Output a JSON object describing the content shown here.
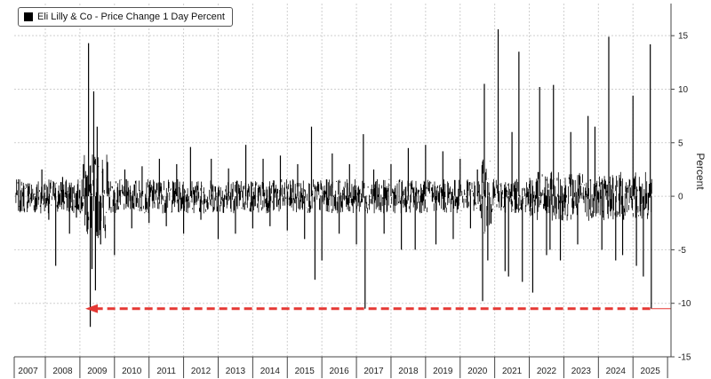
{
  "chart_data": {
    "type": "line",
    "title": "",
    "legend": {
      "entries": [
        "Eli Lilly & Co - Price Change 1 Day Percent"
      ],
      "placement": "top-left"
    },
    "ylabel": "Percent",
    "xlabel": "",
    "ylim": [
      -15,
      18
    ],
    "yticks": [
      15,
      10,
      5,
      0,
      -5,
      -10,
      -15
    ],
    "xlim": [
      2006.6,
      2025.6
    ],
    "xticks": [
      "2007",
      "2008",
      "2009",
      "2010",
      "2011",
      "2012",
      "2013",
      "2014",
      "2015",
      "2016",
      "2017",
      "2018",
      "2019",
      "2020",
      "2021",
      "2022",
      "2023",
      "2024",
      "2025"
    ],
    "reference_line": {
      "value": -10.5,
      "label": "-10.5",
      "color": "#e53935",
      "style": "dashed-arrow"
    },
    "series": [
      {
        "name": "Eli Lilly & Co - Price Change 1 Day Percent",
        "color": "#000000",
        "points": [
          [
            2007.0,
            1.2
          ],
          [
            2007.2,
            -1.5
          ],
          [
            2007.4,
            2.5
          ],
          [
            2007.6,
            -2.2
          ],
          [
            2007.8,
            -6.5
          ],
          [
            2008.0,
            1.8
          ],
          [
            2008.2,
            -3.5
          ],
          [
            2008.4,
            -2.0
          ],
          [
            2008.6,
            3.0
          ],
          [
            2008.75,
            14.3
          ],
          [
            2008.8,
            -12.2
          ],
          [
            2008.85,
            -6.8
          ],
          [
            2008.9,
            9.8
          ],
          [
            2008.95,
            -8.8
          ],
          [
            2009.0,
            6.5
          ],
          [
            2009.1,
            -4.5
          ],
          [
            2009.3,
            3.2
          ],
          [
            2009.5,
            -5.5
          ],
          [
            2009.8,
            2.5
          ],
          [
            2010.0,
            -3.0
          ],
          [
            2010.3,
            2.8
          ],
          [
            2010.5,
            -2.5
          ],
          [
            2010.8,
            3.5
          ],
          [
            2011.0,
            -2.8
          ],
          [
            2011.3,
            3.0
          ],
          [
            2011.5,
            -3.5
          ],
          [
            2011.7,
            4.6
          ],
          [
            2012.0,
            -2.2
          ],
          [
            2012.3,
            3.5
          ],
          [
            2012.5,
            -4.0
          ],
          [
            2012.8,
            2.6
          ],
          [
            2013.0,
            -3.5
          ],
          [
            2013.3,
            4.8
          ],
          [
            2013.5,
            -3.0
          ],
          [
            2013.8,
            3.5
          ],
          [
            2014.0,
            -2.8
          ],
          [
            2014.3,
            3.8
          ],
          [
            2014.5,
            -3.2
          ],
          [
            2014.8,
            3.0
          ],
          [
            2015.0,
            -4.0
          ],
          [
            2015.2,
            6.5
          ],
          [
            2015.3,
            -7.8
          ],
          [
            2015.5,
            -6.0
          ],
          [
            2015.8,
            4.0
          ],
          [
            2016.0,
            -3.5
          ],
          [
            2016.3,
            3.0
          ],
          [
            2016.5,
            -4.5
          ],
          [
            2016.7,
            5.8
          ],
          [
            2016.75,
            -10.5
          ],
          [
            2017.0,
            2.5
          ],
          [
            2017.3,
            -3.5
          ],
          [
            2017.5,
            3.0
          ],
          [
            2017.8,
            -5.0
          ],
          [
            2018.0,
            4.5
          ],
          [
            2018.2,
            -5.0
          ],
          [
            2018.5,
            4.8
          ],
          [
            2018.8,
            -4.5
          ],
          [
            2019.0,
            4.2
          ],
          [
            2019.3,
            -4.0
          ],
          [
            2019.5,
            3.5
          ],
          [
            2019.8,
            -3.0
          ],
          [
            2020.0,
            2.5
          ],
          [
            2020.15,
            -9.8
          ],
          [
            2020.2,
            10.5
          ],
          [
            2020.3,
            -6.0
          ],
          [
            2020.6,
            15.6
          ],
          [
            2020.8,
            -7.0
          ],
          [
            2020.9,
            -7.5
          ],
          [
            2021.0,
            6.0
          ],
          [
            2021.2,
            13.5
          ],
          [
            2021.3,
            -8.0
          ],
          [
            2021.6,
            -9.0
          ],
          [
            2021.8,
            10.2
          ],
          [
            2022.0,
            -5.5
          ],
          [
            2022.1,
            -5.0
          ],
          [
            2022.2,
            10.4
          ],
          [
            2022.4,
            -6.0
          ],
          [
            2022.7,
            6.0
          ],
          [
            2022.9,
            -4.5
          ],
          [
            2023.2,
            7.5
          ],
          [
            2023.4,
            6.5
          ],
          [
            2023.6,
            -5.0
          ],
          [
            2023.8,
            14.9
          ],
          [
            2024.0,
            -6.0
          ],
          [
            2024.2,
            -5.5
          ],
          [
            2024.5,
            9.4
          ],
          [
            2024.6,
            -6.5
          ],
          [
            2024.8,
            -7.5
          ],
          [
            2025.0,
            14.2
          ],
          [
            2025.03,
            -10.5
          ]
        ]
      }
    ]
  },
  "chart_area": {
    "plot_bg": "#ffffff",
    "grid_color": "#cfcfcf",
    "frame_color": "#444444"
  }
}
